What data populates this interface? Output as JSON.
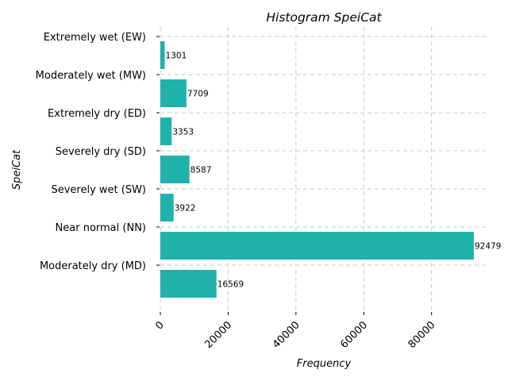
{
  "chart_data": {
    "type": "bar",
    "orientation": "horizontal",
    "title": "Histogram SpeiCat",
    "xlabel": "Frequency",
    "ylabel": "SpeiCat",
    "categories": [
      "Extremely wet (EW)",
      "Moderately wet (MW)",
      "Extremely dry (ED)",
      "Severely dry (SD)",
      "Severely wet (SW)",
      "Near normal (NN)",
      "Moderately dry (MD)"
    ],
    "values": [
      1301,
      7709,
      3353,
      8587,
      3922,
      92479,
      16569
    ],
    "xlim": [
      0,
      96000
    ],
    "xticks": [
      0,
      20000,
      40000,
      60000,
      80000
    ],
    "xtick_labels": [
      "0",
      "20000",
      "40000",
      "60000",
      "80000"
    ],
    "grid": true,
    "bar_color": "#20b2aa"
  }
}
